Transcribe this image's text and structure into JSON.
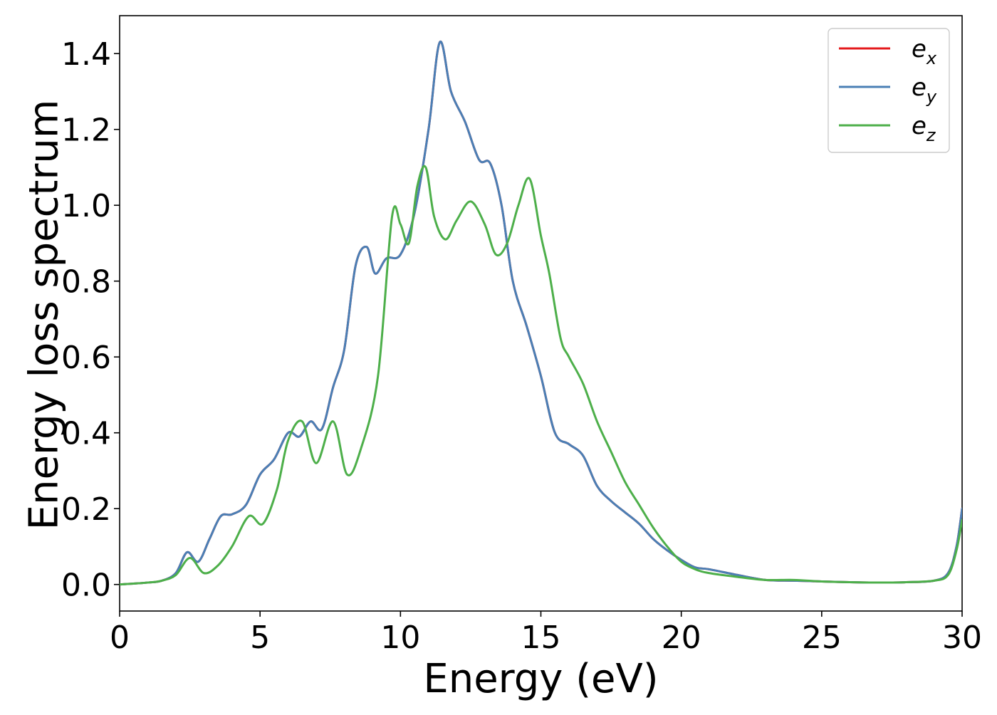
{
  "chart_data": {
    "type": "line",
    "xlabel": "Energy (eV)",
    "ylabel": "Energy loss spectrum",
    "xlim": [
      0,
      30
    ],
    "ylim": [
      -0.07,
      1.5
    ],
    "xticks": [
      0,
      5,
      10,
      15,
      20,
      25,
      30
    ],
    "xtick_labels": [
      "0",
      "5",
      "10",
      "15",
      "20",
      "25",
      "30"
    ],
    "yticks": [
      0.0,
      0.2,
      0.4,
      0.6,
      0.8,
      1.0,
      1.2,
      1.4
    ],
    "ytick_labels": [
      "0.0",
      "0.2",
      "0.4",
      "0.6",
      "0.8",
      "1.0",
      "1.2",
      "1.4"
    ],
    "grid": false,
    "legend_position": "top-right",
    "series": [
      {
        "name": "e_x",
        "base": "e",
        "sub": "x",
        "color": "#e41a1c",
        "x": [
          0,
          1,
          1.5,
          2.0,
          2.4,
          2.8,
          3.2,
          3.6,
          4.0,
          4.5,
          5.0,
          5.5,
          6.0,
          6.4,
          6.8,
          7.2,
          7.6,
          8.0,
          8.4,
          8.8,
          9.1,
          9.5,
          10.0,
          10.5,
          11.0,
          11.4,
          11.8,
          12.3,
          12.8,
          13.2,
          13.6,
          14.0,
          14.5,
          15.0,
          15.5,
          16.0,
          16.5,
          17.0,
          17.5,
          18.0,
          18.5,
          19.0,
          19.5,
          20.0,
          20.5,
          21.0,
          22.0,
          23.0,
          24.0,
          25.0,
          26.0,
          27.0,
          28.0,
          29.0,
          29.5,
          29.8,
          30.0
        ],
        "y": [
          0.0,
          0.005,
          0.01,
          0.03,
          0.085,
          0.06,
          0.12,
          0.18,
          0.185,
          0.21,
          0.29,
          0.33,
          0.4,
          0.39,
          0.43,
          0.41,
          0.52,
          0.62,
          0.84,
          0.89,
          0.82,
          0.86,
          0.87,
          0.98,
          1.2,
          1.43,
          1.3,
          1.22,
          1.12,
          1.11,
          1.0,
          0.8,
          0.68,
          0.55,
          0.4,
          0.37,
          0.34,
          0.26,
          0.22,
          0.19,
          0.16,
          0.12,
          0.09,
          0.065,
          0.045,
          0.04,
          0.025,
          0.012,
          0.01,
          0.008,
          0.006,
          0.005,
          0.006,
          0.01,
          0.03,
          0.1,
          0.2
        ]
      },
      {
        "name": "e_y",
        "base": "e",
        "sub": "y",
        "color": "#4a7fb5",
        "x": [
          0,
          1,
          1.5,
          2.0,
          2.4,
          2.8,
          3.2,
          3.6,
          4.0,
          4.5,
          5.0,
          5.5,
          6.0,
          6.4,
          6.8,
          7.2,
          7.6,
          8.0,
          8.4,
          8.8,
          9.1,
          9.5,
          10.0,
          10.5,
          11.0,
          11.4,
          11.8,
          12.3,
          12.8,
          13.2,
          13.6,
          14.0,
          14.5,
          15.0,
          15.5,
          16.0,
          16.5,
          17.0,
          17.5,
          18.0,
          18.5,
          19.0,
          19.5,
          20.0,
          20.5,
          21.0,
          22.0,
          23.0,
          24.0,
          25.0,
          26.0,
          27.0,
          28.0,
          29.0,
          29.5,
          29.8,
          30.0
        ],
        "y": [
          0.0,
          0.005,
          0.01,
          0.03,
          0.085,
          0.06,
          0.12,
          0.18,
          0.185,
          0.21,
          0.29,
          0.33,
          0.4,
          0.39,
          0.43,
          0.41,
          0.52,
          0.62,
          0.84,
          0.89,
          0.82,
          0.86,
          0.87,
          0.98,
          1.2,
          1.43,
          1.3,
          1.22,
          1.12,
          1.11,
          1.0,
          0.8,
          0.68,
          0.55,
          0.4,
          0.37,
          0.34,
          0.26,
          0.22,
          0.19,
          0.16,
          0.12,
          0.09,
          0.065,
          0.045,
          0.04,
          0.025,
          0.012,
          0.01,
          0.008,
          0.006,
          0.005,
          0.006,
          0.01,
          0.03,
          0.1,
          0.2
        ]
      },
      {
        "name": "e_z",
        "base": "e",
        "sub": "z",
        "color": "#4daf4a",
        "x": [
          0,
          1,
          1.5,
          2.0,
          2.5,
          3.0,
          3.5,
          4.0,
          4.6,
          5.1,
          5.6,
          6.0,
          6.5,
          7.0,
          7.6,
          8.1,
          8.6,
          9.2,
          9.7,
          10.0,
          10.3,
          10.6,
          10.9,
          11.2,
          11.6,
          12.0,
          12.5,
          13.0,
          13.4,
          13.8,
          14.2,
          14.6,
          15.0,
          15.3,
          15.7,
          16.0,
          16.5,
          17.0,
          17.5,
          18.0,
          18.5,
          19.0,
          19.5,
          20.0,
          20.5,
          21.0,
          22.0,
          23.0,
          24.0,
          25.0,
          26.0,
          27.0,
          28.0,
          29.0,
          29.5,
          29.8,
          30.0
        ],
        "y": [
          0.0,
          0.005,
          0.01,
          0.025,
          0.07,
          0.03,
          0.05,
          0.1,
          0.18,
          0.16,
          0.25,
          0.38,
          0.43,
          0.32,
          0.43,
          0.29,
          0.36,
          0.55,
          0.97,
          0.95,
          0.9,
          1.05,
          1.1,
          0.97,
          0.91,
          0.96,
          1.01,
          0.95,
          0.87,
          0.9,
          1.0,
          1.07,
          0.92,
          0.82,
          0.65,
          0.6,
          0.53,
          0.43,
          0.35,
          0.27,
          0.21,
          0.15,
          0.1,
          0.06,
          0.04,
          0.03,
          0.02,
          0.012,
          0.012,
          0.008,
          0.006,
          0.005,
          0.006,
          0.01,
          0.025,
          0.09,
          0.17
        ]
      }
    ]
  }
}
